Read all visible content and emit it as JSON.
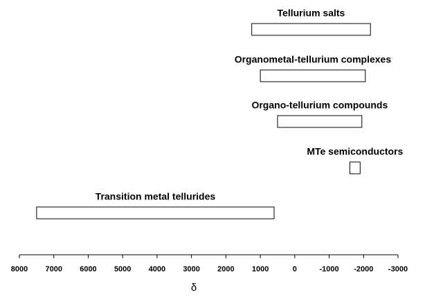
{
  "chart_data": {
    "type": "range-bar",
    "categories": [
      "Tellurium salts",
      "Organometal-tellurium complexes",
      "Organo-tellurium compounds",
      "MTe semiconductors",
      "Transition metal tellurides"
    ],
    "ranges": [
      [
        1250,
        -2200
      ],
      [
        1000,
        -2050
      ],
      [
        500,
        -1950
      ],
      [
        -1600,
        -1900
      ],
      [
        7500,
        600
      ]
    ],
    "color": "#ffffff",
    "xlabel": "δ",
    "xlim": [
      8000,
      -3000
    ],
    "xticks": [
      8000,
      7000,
      6000,
      5000,
      4000,
      3000,
      2000,
      1000,
      0,
      -1000,
      -2000,
      -3000
    ]
  }
}
